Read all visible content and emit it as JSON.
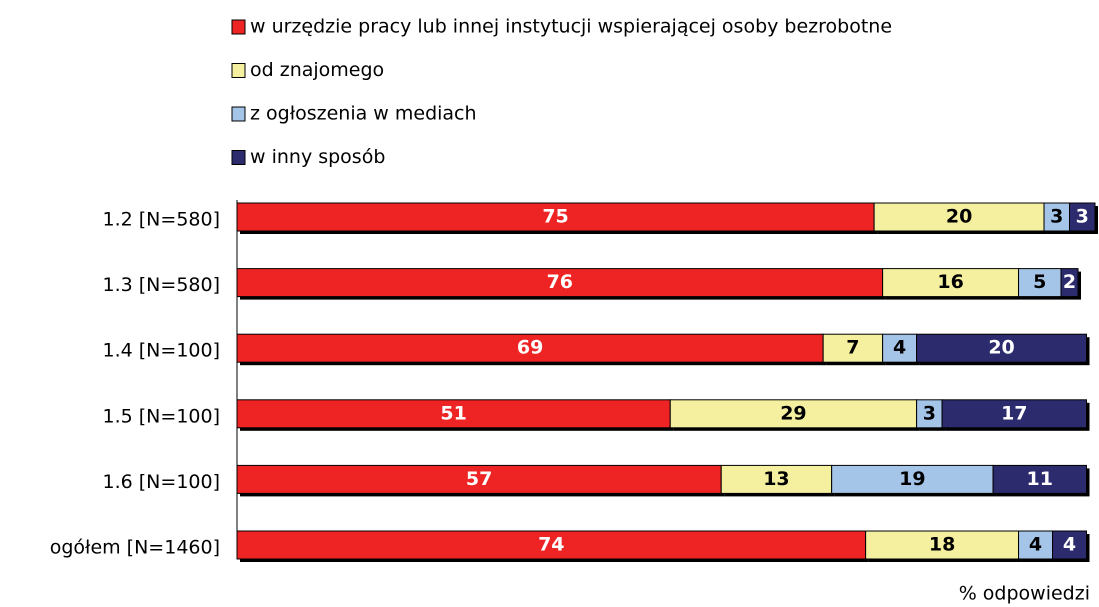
{
  "chart_data": {
    "type": "stacked_barh",
    "categories": [
      "1.2 [N=580]",
      "1.3 [N=580]",
      "1.4 [N=100]",
      "1.5 [N=100]",
      "1.6 [N=100]",
      "ogółem [N=1460]"
    ],
    "series": [
      {
        "name": "w urzędzie pracy lub innej instytucji wspierającej osoby bezrobotne",
        "color": "#ee2424",
        "values": [
          75,
          76,
          69,
          51,
          57,
          74
        ]
      },
      {
        "name": "od znajomego",
        "color": "#f4f0a0",
        "values": [
          20,
          16,
          7,
          29,
          13,
          18
        ]
      },
      {
        "name": "z ogłoszenia w mediach",
        "color": "#a4c4e8",
        "values": [
          3,
          5,
          4,
          3,
          19,
          4
        ]
      },
      {
        "name": "w inny sposób",
        "color": "#2b2b6e",
        "values": [
          3,
          2,
          20,
          17,
          11,
          4
        ]
      }
    ],
    "xlabel": "% odpowiedzi",
    "xlim": [
      0,
      101
    ]
  }
}
